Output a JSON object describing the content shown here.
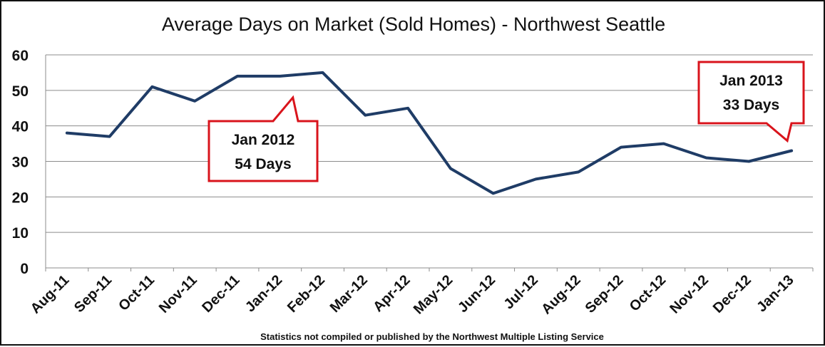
{
  "chart_data": {
    "type": "line",
    "title": "Average Days on Market (Sold Homes) - Northwest Seattle",
    "categories": [
      "Aug-11",
      "Sep-11",
      "Oct-11",
      "Nov-11",
      "Dec-11",
      "Jan-12",
      "Feb-12",
      "Mar-12",
      "Apr-12",
      "May-12",
      "Jun-12",
      "Jul-12",
      "Aug-12",
      "Sep-12",
      "Oct-12",
      "Nov-12",
      "Dec-12",
      "Jan-13"
    ],
    "series": [
      {
        "values": [
          38,
          37,
          51,
          47,
          54,
          54,
          55,
          43,
          45,
          28,
          21,
          25,
          27,
          34,
          35,
          31,
          30,
          33
        ]
      }
    ],
    "ylim": [
      0,
      60
    ],
    "yticks": [
      0,
      10,
      20,
      30,
      40,
      50,
      60
    ],
    "grid": true,
    "legend": "none",
    "line_color": "#1F3C66",
    "annotations": [
      {
        "line1": "Jan 2012",
        "line2": "54 Days",
        "category": "Jan-12",
        "value": 54
      },
      {
        "line1": "Jan 2013",
        "line2": "33 Days",
        "category": "Jan-13",
        "value": 33
      }
    ],
    "callout_border_color": "#D9141C",
    "footnote": "Statistics  not compiled or published by the Northwest Multiple Listing Service"
  }
}
